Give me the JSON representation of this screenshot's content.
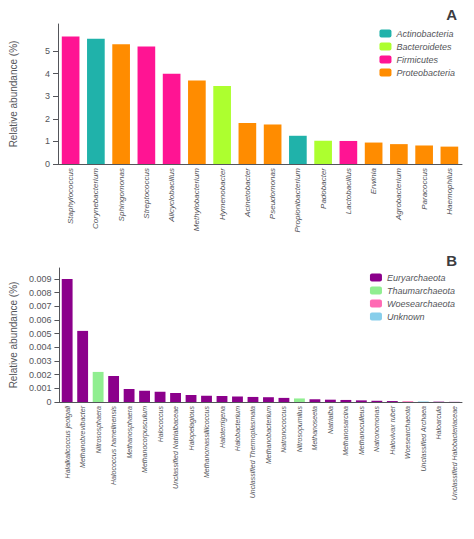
{
  "chart_data": [
    {
      "type": "bar",
      "title": "A",
      "categories": [
        "Staphylococcus",
        "Corynebacterium",
        "Sphingomonas",
        "Streptococcus",
        "Alicyclobacillus",
        "Methylobacterium",
        "Hymenobacter",
        "Acinetobacter",
        "Pseudomonas",
        "Propionibacterium",
        "Padobacter",
        "Lactobacillus",
        "Erwinia",
        "Agrobacterium",
        "Paracoccus",
        "Haemophilus"
      ],
      "series": [
        {
          "name": "Actinobacteria",
          "color": "#20B2AA",
          "values": [
            null,
            5.55,
            null,
            null,
            null,
            null,
            null,
            null,
            null,
            1.25,
            null,
            null,
            null,
            null,
            null,
            null
          ]
        },
        {
          "name": "Bacteroidetes",
          "color": "#ADFF2F",
          "values": [
            null,
            null,
            null,
            null,
            null,
            null,
            3.45,
            null,
            null,
            null,
            1.03,
            null,
            null,
            null,
            null,
            null
          ]
        },
        {
          "name": "Firmicutes",
          "color": "#FF1493",
          "values": [
            5.65,
            null,
            null,
            5.2,
            4.0,
            null,
            null,
            null,
            null,
            null,
            null,
            1.02,
            null,
            null,
            null,
            null
          ]
        },
        {
          "name": "Proteobacteria",
          "color": "#FF8C00",
          "values": [
            null,
            null,
            5.3,
            null,
            null,
            3.7,
            null,
            1.82,
            1.75,
            null,
            null,
            null,
            0.95,
            0.88,
            0.82,
            0.77
          ]
        }
      ],
      "ylabel": "Relative abundance (%)",
      "ylim": [
        0,
        6.2
      ],
      "yticks": [
        0,
        1,
        2,
        3,
        4,
        5
      ],
      "legend": "upper right"
    },
    {
      "type": "bar",
      "title": "B",
      "categories": [
        "Halalkalicoccus jeotgali",
        "Methanobrevibacter",
        "Nitrososphaera",
        "Halococcus hamelinensis",
        "Methanosphaera",
        "Methanocorpusculum",
        "Halococcus",
        "Unclassified Natrialbaceae",
        "Halopelagious",
        "Methanomassiliicoccus",
        "Haloterrigena",
        "Halobacterium",
        "Unclassified Thermoplasmata",
        "Methanobacterium",
        "Natronococcus",
        "Nitrosopumilus",
        "Methanoseeta",
        "Natrialba",
        "Methanosarcina",
        "Methanoculleus",
        "Natronomonas",
        "Halovivax ruber",
        "Woesearchaeota",
        "Unclassified Archaea",
        "Haloarcula",
        "Unclassified Halobacteriaceae"
      ],
      "series": [
        {
          "name": "Euryarchaeota",
          "color": "#8B008B",
          "values": [
            0.009,
            0.0052,
            null,
            0.0019,
            0.00095,
            0.00082,
            0.00075,
            0.00065,
            0.00052,
            0.00046,
            0.00043,
            0.0004,
            0.00037,
            0.00035,
            0.0003,
            null,
            0.0002,
            0.00017,
            0.00015,
            0.00012,
            9e-05,
            7e-05,
            null,
            null,
            2.5e-05,
            1e-05
          ]
        },
        {
          "name": "Thaumarchaeota",
          "color": "#90EE90",
          "values": [
            null,
            null,
            0.0022,
            null,
            null,
            null,
            null,
            null,
            null,
            null,
            null,
            null,
            null,
            null,
            null,
            0.00026,
            null,
            null,
            null,
            null,
            null,
            null,
            null,
            null,
            null,
            null
          ]
        },
        {
          "name": "Woesearchaeota",
          "color": "#FF69B4",
          "values": [
            null,
            null,
            null,
            null,
            null,
            null,
            null,
            null,
            null,
            null,
            null,
            null,
            null,
            null,
            null,
            null,
            null,
            null,
            null,
            null,
            null,
            null,
            5.5e-05,
            null,
            null,
            null
          ]
        },
        {
          "name": "Unknown",
          "color": "#87CEEB",
          "values": [
            null,
            null,
            null,
            null,
            null,
            null,
            null,
            null,
            null,
            null,
            null,
            null,
            null,
            null,
            null,
            null,
            null,
            null,
            null,
            null,
            null,
            null,
            null,
            4e-05,
            null,
            null
          ]
        }
      ],
      "ylabel": "Relative abundance (%)",
      "ylim": [
        0,
        0.0098
      ],
      "yticks": [
        0,
        0.001,
        0.002,
        0.003,
        0.004,
        0.005,
        0.006,
        0.007,
        0.008,
        0.009
      ],
      "legend": "upper right"
    }
  ]
}
